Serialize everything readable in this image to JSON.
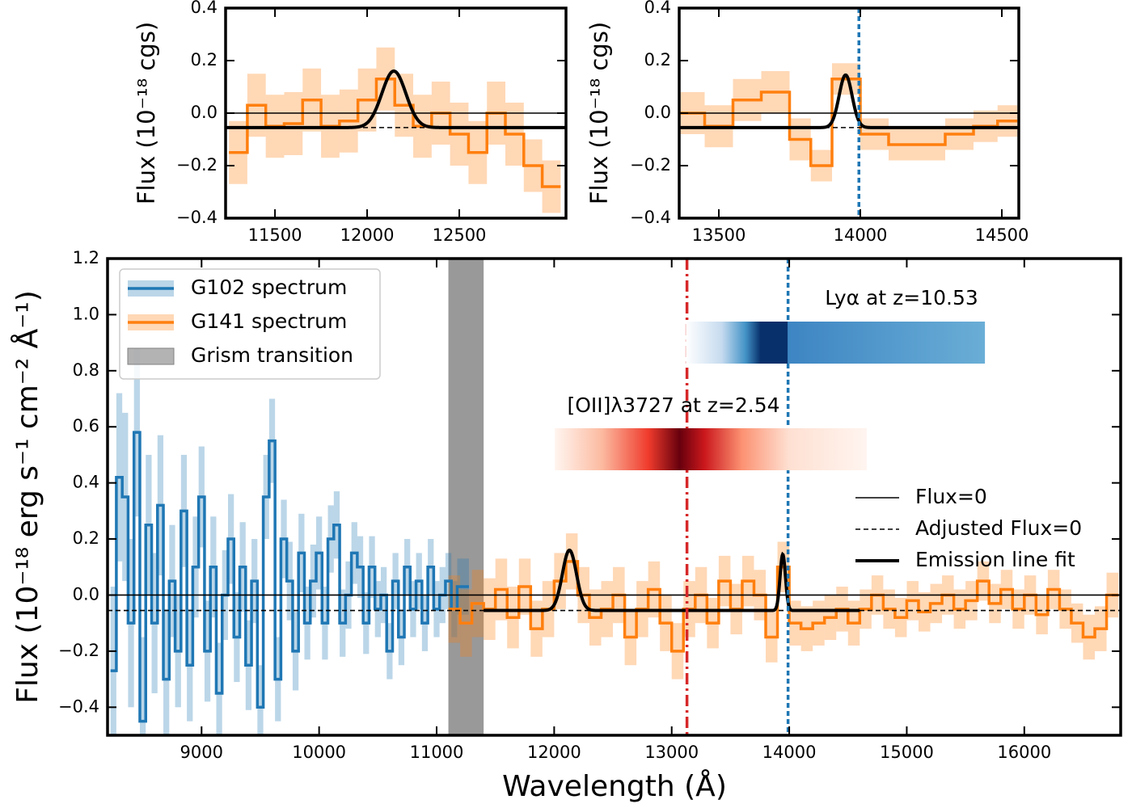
{
  "chart_data": [
    {
      "type": "line",
      "drawstyle": "steps-mid",
      "xlabel": "Wavelength (Å)",
      "ylabel": "Flux (10⁻¹⁸ erg s⁻¹ cm⁻² Å⁻¹)",
      "xlim": [
        8200,
        16820
      ],
      "ylim": [
        -0.5,
        1.2
      ],
      "xticks": [
        9000,
        10000,
        11000,
        12000,
        13000,
        14000,
        15000,
        16000
      ],
      "yticks": [
        {
          "value": -0.4,
          "label": "−0.4"
        },
        {
          "value": -0.2,
          "label": "−0.2"
        },
        {
          "value": 0,
          "label": "0.0"
        },
        0.2,
        0.4,
        0.6,
        0.8,
        {
          "value": 1,
          "label": "1.0"
        },
        1.2
      ],
      "series": [
        {
          "name": "G102 spectrum",
          "color": "#1f77b4",
          "x": [
            8250,
            8300,
            8350,
            8400,
            8450,
            8500,
            8550,
            8600,
            8650,
            8700,
            8750,
            8800,
            8850,
            8900,
            8950,
            9000,
            9050,
            9100,
            9150,
            9200,
            9250,
            9300,
            9350,
            9400,
            9450,
            9500,
            9550,
            9600,
            9650,
            9700,
            9750,
            9800,
            9850,
            9900,
            9950,
            10000,
            10050,
            10100,
            10150,
            10200,
            10250,
            10300,
            10350,
            10400,
            10450,
            10500,
            10550,
            10600,
            10650,
            10700,
            10750,
            10800,
            10850,
            10900,
            10950,
            11000,
            11050,
            11100,
            11150,
            11200,
            11250
          ],
          "values": [
            -0.27,
            0.42,
            0.35,
            -0.1,
            0.58,
            -0.45,
            0.25,
            -0.1,
            0.32,
            -0.3,
            0.05,
            -0.2,
            0.3,
            -0.25,
            0.1,
            0.35,
            -0.2,
            0.1,
            -0.35,
            0,
            0.2,
            -0.15,
            0.1,
            -0.25,
            0.05,
            -0.4,
            0.35,
            0.55,
            -0.3,
            0.2,
            0.05,
            -0.2,
            0.15,
            -0.1,
            0.05,
            0.15,
            -0.1,
            0.2,
            0.25,
            -0.1,
            0,
            0.15,
            0.1,
            -0.1,
            0.1,
            -0.05,
            0,
            -0.2,
            0.05,
            -0.15,
            0.1,
            -0.05,
            0.05,
            -0.1,
            0.1,
            -0.05,
            0,
            0.05,
            -0.05,
            0.03,
            0.03
          ],
          "errors": [
            0.3,
            0.3,
            0.3,
            0.3,
            0.3,
            0.3,
            0.25,
            0.25,
            0.25,
            0.25,
            0.2,
            0.2,
            0.2,
            0.2,
            0.18,
            0.18,
            0.18,
            0.18,
            0.18,
            0.16,
            0.16,
            0.16,
            0.16,
            0.16,
            0.15,
            0.15,
            0.15,
            0.15,
            0.15,
            0.14,
            0.14,
            0.14,
            0.14,
            0.13,
            0.13,
            0.13,
            0.13,
            0.12,
            0.12,
            0.12,
            0.12,
            0.11,
            0.11,
            0.11,
            0.11,
            0.1,
            0.1,
            0.1,
            0.1,
            0.1,
            0.1,
            0.1,
            0.1,
            0.1,
            0.1,
            0.1,
            0.1,
            0.1,
            0.1,
            0.1,
            0.1
          ]
        },
        {
          "name": "G141 spectrum",
          "color": "#ff7f0e",
          "x": [
            11150,
            11250,
            11350,
            11450,
            11550,
            11650,
            11750,
            11850,
            11950,
            12050,
            12150,
            12250,
            12350,
            12450,
            12550,
            12650,
            12750,
            12850,
            12950,
            13050,
            13150,
            13250,
            13350,
            13450,
            13550,
            13650,
            13750,
            13850,
            13950,
            14050,
            14150,
            14250,
            14350,
            14450,
            14550,
            14650,
            14750,
            14850,
            14950,
            15050,
            15150,
            15250,
            15350,
            15450,
            15550,
            15650,
            15750,
            15850,
            15950,
            16050,
            16150,
            16250,
            16350,
            16450,
            16550,
            16650,
            16750
          ],
          "values": [
            -0.05,
            -0.1,
            -0.03,
            -0.05,
            0.02,
            -0.08,
            0.03,
            -0.12,
            -0.05,
            0.05,
            0.12,
            0,
            -0.08,
            -0.05,
            0,
            -0.15,
            -0.05,
            0.02,
            -0.1,
            -0.2,
            -0.05,
            0,
            -0.1,
            0.05,
            -0.05,
            0.05,
            0,
            -0.15,
            0.1,
            -0.1,
            -0.12,
            -0.1,
            -0.08,
            -0.05,
            -0.1,
            -0.05,
            0,
            -0.05,
            -0.08,
            -0.02,
            -0.06,
            -0.03,
            0,
            -0.05,
            -0.02,
            0.05,
            -0.03,
            0.02,
            -0.05,
            0,
            -0.07,
            0.02,
            -0.05,
            -0.1,
            -0.15,
            -0.12,
            0
          ],
          "errors": [
            0.12,
            0.12,
            0.12,
            0.11,
            0.11,
            0.11,
            0.1,
            0.1,
            0.1,
            0.1,
            0.1,
            0.1,
            0.1,
            0.1,
            0.1,
            0.1,
            0.1,
            0.1,
            0.1,
            0.1,
            0.1,
            0.1,
            0.09,
            0.09,
            0.09,
            0.09,
            0.09,
            0.09,
            0.09,
            0.08,
            0.08,
            0.08,
            0.08,
            0.08,
            0.08,
            0.07,
            0.07,
            0.07,
            0.07,
            0.07,
            0.07,
            0.07,
            0.07,
            0.07,
            0.07,
            0.07,
            0.07,
            0.07,
            0.07,
            0.07,
            0.07,
            0.07,
            0.07,
            0.07,
            0.08,
            0.08,
            0.08
          ]
        }
      ],
      "spans": [
        {
          "name": "Grism transition",
          "range": [
            11100,
            11400
          ],
          "color": "#808080"
        }
      ],
      "hlines": [
        {
          "name": "Flux=0",
          "value": 0,
          "style": "solid"
        },
        {
          "name": "Adjusted Flux=0",
          "value": -0.055,
          "style": "dashed"
        }
      ],
      "fit": {
        "name": "Emission line fit",
        "continuum": -0.055,
        "range": [
          11400,
          14600
        ],
        "lines": [
          {
            "center": 12130,
            "amplitude": 0.215,
            "sigma": 60
          },
          {
            "center": 13945,
            "amplitude": 0.2,
            "sigma": 23
          }
        ]
      },
      "vlines": [
        {
          "value": 13130,
          "color": "#d62728",
          "style": "dashdot"
        },
        {
          "value": 13990,
          "color": "#1f77b4",
          "style": "dashed"
        }
      ],
      "redshift_bars": [
        {
          "label": "Lyα at z=10.53",
          "range": [
            13120,
            15665
          ]
        },
        {
          "label": "[OII]λ3727 at z=2.54",
          "range": [
            12005,
            14660
          ]
        }
      ]
    },
    {
      "type": "line",
      "drawstyle": "steps-mid",
      "ylabel": "Flux (10⁻¹⁸ cgs)",
      "xlim": [
        11232,
        13079
      ],
      "ylim": [
        -0.4,
        0.4
      ],
      "xticks": [
        11500,
        12000,
        12500
      ],
      "yticks": [
        {
          "value": -0.4,
          "label": "−0.4"
        },
        {
          "value": -0.2,
          "label": "−0.2"
        },
        {
          "value": 0,
          "label": "0.0"
        },
        0.2,
        0.4
      ],
      "series": [
        {
          "color": "#ff7f0e",
          "x": [
            11300,
            11400,
            11500,
            11600,
            11700,
            11800,
            11900,
            12000,
            12100,
            12200,
            12300,
            12400,
            12500,
            12600,
            12700,
            12800,
            12900,
            13000
          ],
          "values": [
            -0.15,
            0.03,
            -0.05,
            -0.04,
            0.05,
            -0.05,
            -0.03,
            0.05,
            0.13,
            0.03,
            -0.05,
            0,
            -0.08,
            -0.15,
            0,
            -0.08,
            -0.2,
            -0.28
          ],
          "errors": [
            0.12,
            0.12,
            0.12,
            0.12,
            0.12,
            0.12,
            0.12,
            0.12,
            0.12,
            0.12,
            0.12,
            0.12,
            0.12,
            0.12,
            0.12,
            0.12,
            0.1,
            0.1
          ]
        }
      ],
      "hlines": [
        {
          "value": 0,
          "style": "solid"
        },
        {
          "value": -0.055,
          "style": "dashed"
        }
      ],
      "fit": {
        "continuum": -0.055,
        "lines": [
          {
            "center": 12145,
            "amplitude": 0.215,
            "sigma": 65
          }
        ]
      }
    },
    {
      "type": "line",
      "drawstyle": "steps-mid",
      "ylabel": "Flux (10⁻¹⁸ cgs)",
      "xlim": [
        13360,
        14560
      ],
      "ylim": [
        -0.4,
        0.4
      ],
      "xticks": [
        13500,
        14000,
        14500
      ],
      "yticks": [
        {
          "value": -0.4,
          "label": "−0.4"
        },
        {
          "value": -0.2,
          "label": "−0.2"
        },
        {
          "value": 0,
          "label": "0.0"
        },
        0.2,
        0.4
      ],
      "series": [
        {
          "color": "#ff7f0e",
          "x": [
            13400,
            13500,
            13600,
            13700,
            13800,
            13850,
            13950,
            14050,
            14150,
            14250,
            14350,
            14450,
            14520
          ],
          "values": [
            0,
            -0.05,
            0.05,
            0.08,
            -0.1,
            -0.2,
            0.13,
            -0.08,
            -0.12,
            -0.12,
            -0.08,
            -0.05,
            -0.03
          ],
          "errors": [
            0.08,
            0.08,
            0.08,
            0.08,
            0.08,
            0.06,
            0.06,
            0.06,
            0.06,
            0.06,
            0.06,
            0.06,
            0.06
          ]
        }
      ],
      "hlines": [
        {
          "value": 0,
          "style": "solid"
        },
        {
          "value": -0.055,
          "style": "dashed"
        }
      ],
      "fit": {
        "continuum": -0.055,
        "lines": [
          {
            "center": 13948,
            "amplitude": 0.2,
            "sigma": 23
          }
        ]
      },
      "vlines": [
        {
          "value": 13995,
          "color": "#1f77b4",
          "style": "dashed"
        }
      ]
    }
  ]
}
